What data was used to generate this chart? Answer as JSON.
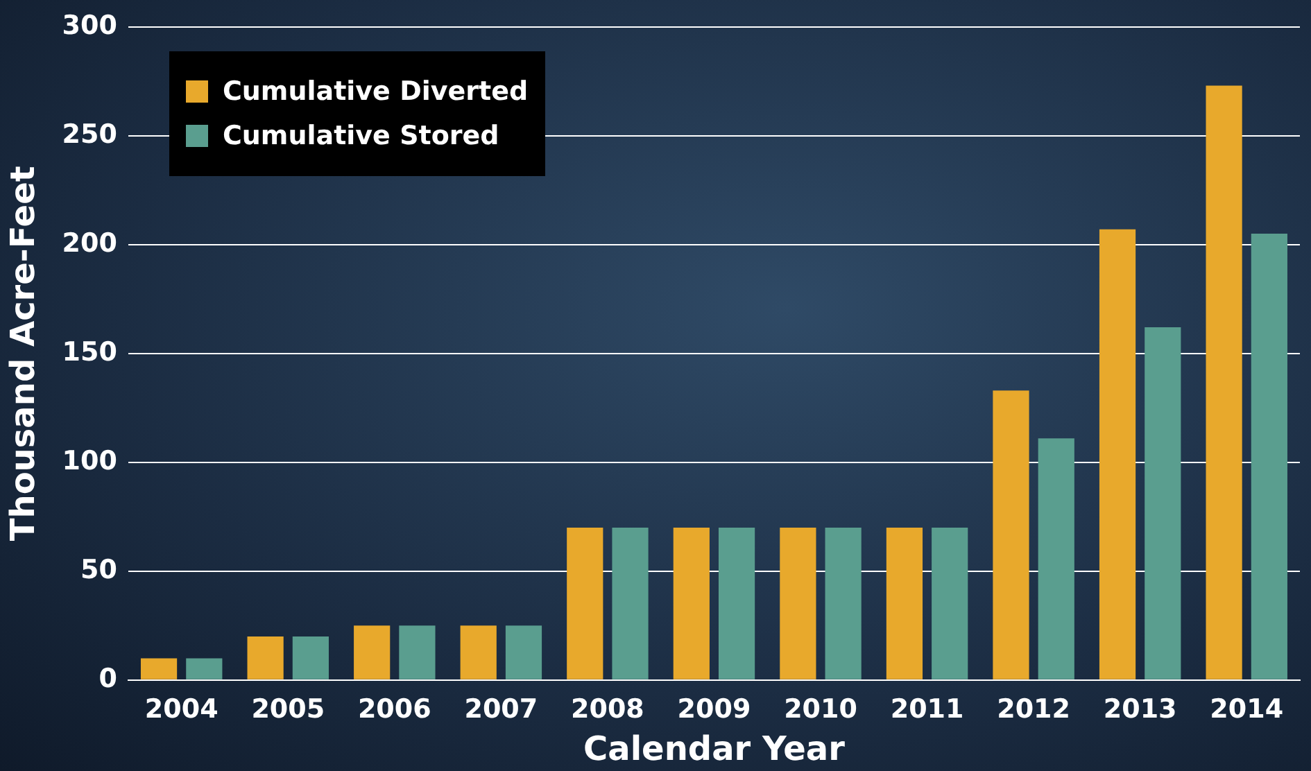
{
  "chart_data": {
    "type": "bar",
    "xlabel": "Calendar Year",
    "ylabel": "Thousand Acre-Feet",
    "categories": [
      "2004",
      "2005",
      "2006",
      "2007",
      "2008",
      "2009",
      "2010",
      "2011",
      "2012",
      "2013",
      "2014"
    ],
    "series": [
      {
        "name": "Cumulative Diverted",
        "color": "#e8a92c",
        "values": [
          10,
          20,
          25,
          25,
          70,
          70,
          70,
          70,
          133,
          207,
          273
        ]
      },
      {
        "name": "Cumulative Stored",
        "color": "#5a9e8f",
        "values": [
          10,
          20,
          25,
          25,
          70,
          70,
          70,
          70,
          111,
          162,
          205
        ]
      }
    ],
    "ylim": [
      0,
      300
    ],
    "yticks": [
      0,
      50,
      100,
      150,
      200,
      250,
      300
    ],
    "grid": "y",
    "legend": "top left"
  }
}
